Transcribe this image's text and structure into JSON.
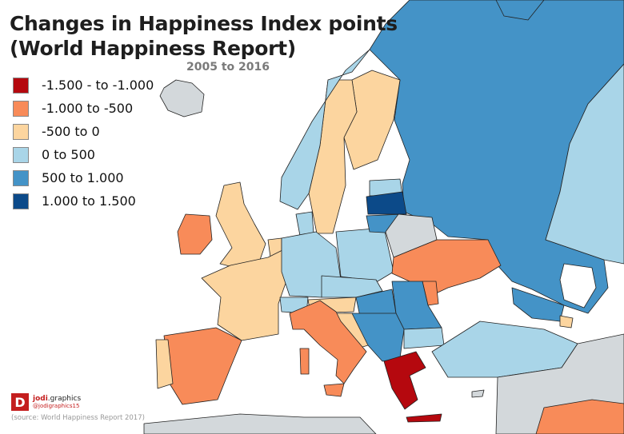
{
  "title_line1": "Changes in Happiness Index points",
  "title_line2": "(World Happiness Report)",
  "subtitle": "2005 to 2016",
  "legend": [
    {
      "label": "-1.500 - to -1.000",
      "color": "#b5080e"
    },
    {
      "label": "-1.000 to -500",
      "color": "#f88b59"
    },
    {
      "label": "-500 to 0",
      "color": "#fcd59f"
    },
    {
      "label": "0 to 500",
      "color": "#a9d5e8"
    },
    {
      "label": "500 to 1.000",
      "color": "#4493c7"
    },
    {
      "label": "1.000 to 1.500",
      "color": "#0c4a89"
    }
  ],
  "no_data_color": "#d3d8db",
  "brand": {
    "logo_letter": "D",
    "name_bold": "jodi",
    "name_rest": ".graphics",
    "handle": "@jodigraphics15"
  },
  "source": "(source: World Happiness Report 2017)"
}
